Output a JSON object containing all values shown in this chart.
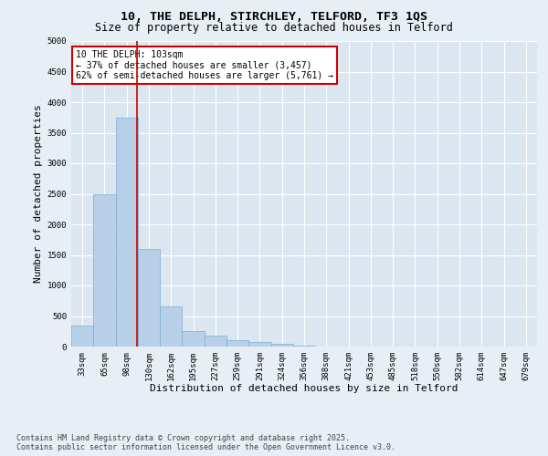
{
  "title_line1": "10, THE DELPH, STIRCHLEY, TELFORD, TF3 1QS",
  "title_line2": "Size of property relative to detached houses in Telford",
  "xlabel": "Distribution of detached houses by size in Telford",
  "ylabel": "Number of detached properties",
  "categories": [
    "33sqm",
    "65sqm",
    "98sqm",
    "130sqm",
    "162sqm",
    "195sqm",
    "227sqm",
    "259sqm",
    "291sqm",
    "324sqm",
    "356sqm",
    "388sqm",
    "421sqm",
    "453sqm",
    "485sqm",
    "518sqm",
    "550sqm",
    "582sqm",
    "614sqm",
    "647sqm",
    "679sqm"
  ],
  "values": [
    350,
    2500,
    3750,
    1600,
    650,
    250,
    175,
    100,
    75,
    50,
    10,
    5,
    3,
    2,
    2,
    1,
    1,
    1,
    1,
    1,
    1
  ],
  "bar_color": "#b8cfe8",
  "bar_edgecolor": "#7aaed4",
  "vline_x": 2.45,
  "vline_color": "#cc0000",
  "annotation_text": "10 THE DELPH: 103sqm\n← 37% of detached houses are smaller (3,457)\n62% of semi-detached houses are larger (5,761) →",
  "annotation_box_facecolor": "white",
  "annotation_box_edgecolor": "#cc0000",
  "ylim": [
    0,
    5000
  ],
  "yticks": [
    0,
    500,
    1000,
    1500,
    2000,
    2500,
    3000,
    3500,
    4000,
    4500,
    5000
  ],
  "background_color": "#e8eef5",
  "plot_bg_color": "#dce6f0",
  "grid_color": "white",
  "footer_line1": "Contains HM Land Registry data © Crown copyright and database right 2025.",
  "footer_line2": "Contains public sector information licensed under the Open Government Licence v3.0.",
  "title_fontsize": 9.5,
  "subtitle_fontsize": 8.5,
  "tick_fontsize": 6.5,
  "label_fontsize": 8,
  "footer_fontsize": 6,
  "annotation_fontsize": 7
}
